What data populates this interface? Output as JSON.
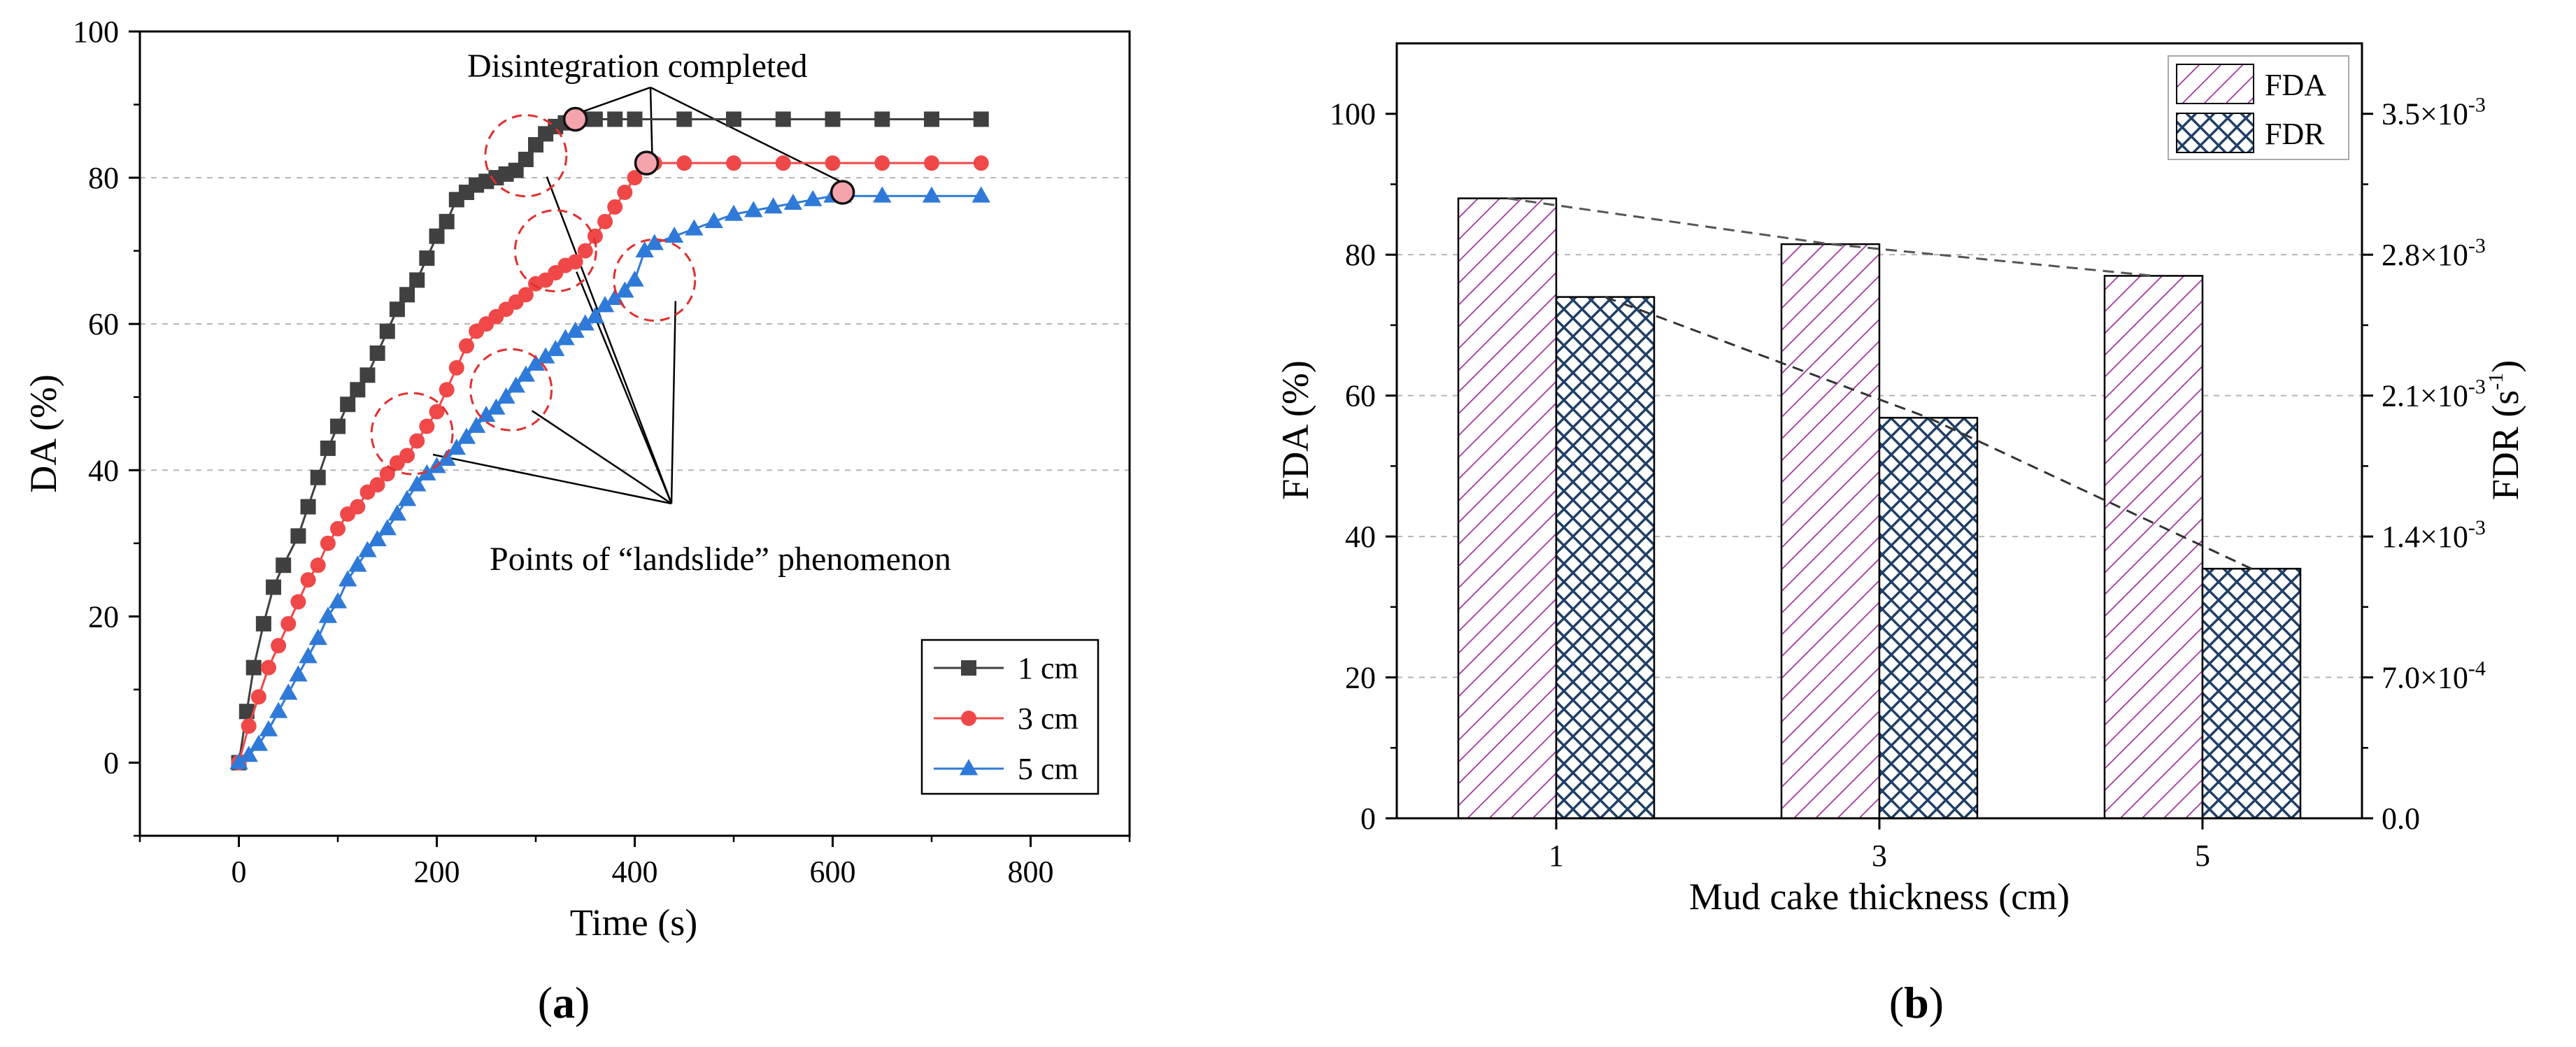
{
  "chart_data": [
    {
      "id": "a",
      "type": "scatter",
      "panel_label": "a",
      "xlabel": "Time (s)",
      "ylabel": "DA (%)",
      "xlim": [
        -100,
        900
      ],
      "ylim": [
        -10,
        100
      ],
      "xticks": [
        0,
        200,
        400,
        600,
        800
      ],
      "yticks": [
        0,
        20,
        40,
        60,
        80,
        100
      ],
      "grid": "horizontal dashed at 40, 60, 80",
      "legend": {
        "position": "bottom-right",
        "entries": [
          "1 cm",
          "3 cm",
          "5 cm"
        ]
      },
      "series": [
        {
          "name": "1 cm",
          "marker": "square",
          "color": "#404040",
          "x": [
            0,
            8,
            15,
            25,
            35,
            45,
            60,
            70,
            80,
            90,
            100,
            110,
            120,
            130,
            140,
            150,
            160,
            170,
            180,
            190,
            200,
            210,
            220,
            230,
            240,
            250,
            260,
            270,
            280,
            290,
            300,
            310,
            320,
            330,
            340,
            350,
            360,
            380,
            400,
            450,
            500,
            550,
            600,
            650,
            700,
            750
          ],
          "y": [
            0,
            7,
            13,
            19,
            24,
            27,
            31,
            35,
            39,
            43,
            46,
            49,
            51,
            53,
            56,
            59,
            62,
            64,
            66,
            69,
            72,
            74,
            77,
            78,
            79,
            79.5,
            80,
            80.5,
            81,
            82.5,
            84.5,
            86,
            87,
            87.5,
            88,
            88,
            88,
            88,
            88,
            88,
            88,
            88,
            88,
            88,
            88,
            88
          ]
        },
        {
          "name": "3 cm",
          "marker": "circle",
          "color": "#f04848",
          "x": [
            0,
            10,
            20,
            30,
            40,
            50,
            60,
            70,
            80,
            90,
            100,
            110,
            120,
            130,
            140,
            150,
            160,
            170,
            180,
            190,
            200,
            210,
            220,
            230,
            240,
            250,
            260,
            270,
            280,
            290,
            300,
            310,
            320,
            330,
            340,
            350,
            360,
            370,
            380,
            390,
            400,
            410,
            420,
            450,
            500,
            550,
            600,
            650,
            700,
            750
          ],
          "y": [
            0,
            5,
            9,
            13,
            16,
            19,
            22,
            25,
            27,
            30,
            32,
            34,
            35,
            37,
            38,
            39.5,
            41,
            42,
            44,
            46,
            48,
            51,
            54,
            57,
            59,
            60,
            61,
            62,
            63,
            64,
            65.5,
            66,
            67,
            68,
            68.5,
            70,
            72,
            74,
            76,
            78,
            80,
            81.5,
            82,
            82,
            82,
            82,
            82,
            82,
            82,
            82
          ]
        },
        {
          "name": "5 cm",
          "marker": "triangle",
          "color": "#2f7ad8",
          "x": [
            0,
            10,
            20,
            30,
            40,
            50,
            60,
            70,
            80,
            90,
            100,
            110,
            120,
            130,
            140,
            150,
            160,
            170,
            180,
            190,
            200,
            210,
            220,
            230,
            240,
            250,
            260,
            270,
            280,
            290,
            300,
            310,
            320,
            330,
            340,
            350,
            360,
            370,
            380,
            390,
            400,
            410,
            420,
            440,
            460,
            480,
            500,
            520,
            540,
            560,
            580,
            600,
            610,
            650,
            700,
            750
          ],
          "y": [
            0,
            1,
            2.5,
            4.5,
            7,
            9.5,
            12,
            14.5,
            17,
            20,
            22,
            25,
            27,
            29,
            30.5,
            32,
            34,
            36,
            38,
            39.5,
            40.5,
            41.5,
            43,
            44.5,
            46,
            47.5,
            48.5,
            50,
            51.5,
            53,
            54.5,
            55.5,
            56.5,
            58,
            59,
            60,
            61,
            62.5,
            63.5,
            64.5,
            66,
            70,
            71,
            72,
            73,
            74,
            75,
            75.5,
            76,
            76.5,
            77,
            77.5,
            77.5,
            77.5,
            77.5,
            77.5
          ]
        }
      ],
      "completion_points": [
        {
          "x": 340,
          "y": 88
        },
        {
          "x": 412,
          "y": 82
        },
        {
          "x": 610,
          "y": 78
        }
      ],
      "landslide_points": [
        {
          "x": 290,
          "y": 83
        },
        {
          "x": 320,
          "y": 70
        },
        {
          "x": 420,
          "y": 66
        },
        {
          "x": 175,
          "y": 45
        },
        {
          "x": 275,
          "y": 51
        }
      ],
      "annotations": [
        "Disintegration completed",
        "Points of “landslide” phenomenon"
      ]
    },
    {
      "id": "b",
      "type": "bar",
      "panel_label": "b",
      "xlabel": "Mud cake thickness (cm)",
      "ylabel": "FDA (%)",
      "ylabel_right_base": "FDR (s",
      "ylabel_right_sup": "-1",
      "ylabel_right_end": ")",
      "categories": [
        "1",
        "3",
        "5"
      ],
      "ylim": [
        0,
        110
      ],
      "yticks": [
        0,
        20,
        40,
        60,
        80,
        100
      ],
      "y2lim": [
        0,
        0.00385
      ],
      "y2ticks": [
        {
          "value": 0,
          "base": "0.0",
          "sup": ""
        },
        {
          "value": 0.0007,
          "base": "7.0×10",
          "sup": "-4"
        },
        {
          "value": 0.0014,
          "base": "1.4×10",
          "sup": "-3"
        },
        {
          "value": 0.0021,
          "base": "2.1×10",
          "sup": "-3"
        },
        {
          "value": 0.0028,
          "base": "2.8×10",
          "sup": "-3"
        },
        {
          "value": 0.0035,
          "base": "3.5×10",
          "sup": "-3"
        }
      ],
      "grid": "horizontal dashed at 20, 40, 60, 80",
      "legend": {
        "position": "top-right",
        "entries": [
          "FDA",
          "FDR"
        ]
      },
      "series": [
        {
          "name": "FDA",
          "axis": "left",
          "pattern": "diagonal hatch",
          "color": "#a0349a",
          "values": [
            88,
            81.5,
            77
          ]
        },
        {
          "name": "FDR",
          "axis": "right",
          "pattern": "cross hatch",
          "color": "#1f3f66",
          "values": [
            0.00259,
            0.00199,
            0.00124
          ]
        }
      ]
    }
  ]
}
